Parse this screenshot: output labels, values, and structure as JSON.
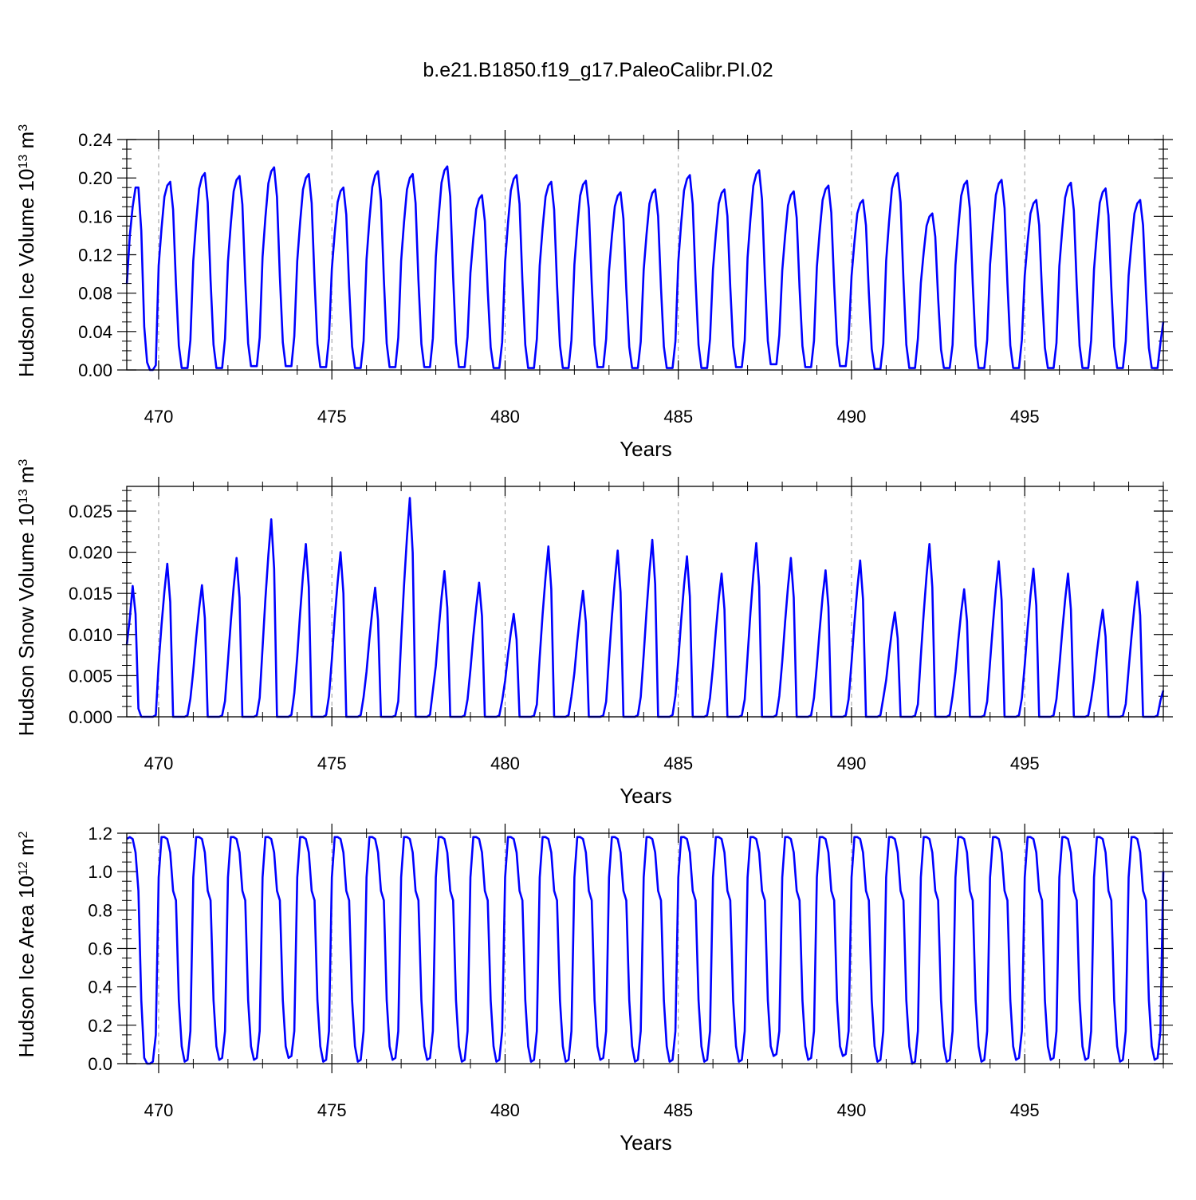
{
  "figure_title": "b.e21.B1850.f19_g17.PaleoCalibr.PI.02",
  "colors": {
    "line": "#0000ff",
    "axis": "#000000",
    "grid": "#999999"
  },
  "chart_data": [
    {
      "type": "line",
      "ylabel": "Hudson Ice Volume 10",
      "ylabel_sup1": "13",
      "ylabel_unit": " m",
      "ylabel_sup2": "3",
      "xlabel": "Years",
      "xlim": [
        469.08,
        499.0
      ],
      "ylim": [
        0,
        0.24
      ],
      "xticks": [
        470,
        475,
        480,
        485,
        490,
        495
      ],
      "xtick_labels": [
        "470",
        "475",
        "480",
        "485",
        "490",
        "495"
      ],
      "yticks": [
        0,
        0.04,
        0.08,
        0.12,
        0.16,
        0.2,
        0.24
      ],
      "ytick_labels": [
        "0.00",
        "0.04",
        "0.08",
        "0.12",
        "0.16",
        "0.20",
        "0.24"
      ],
      "x_start": 469.0833,
      "x_step": 0.083333,
      "grid": "dashed vertical at major x ticks",
      "annual_peaks": [
        0.19,
        0.196,
        0.205,
        0.202,
        0.211,
        0.204,
        0.19,
        0.207,
        0.204,
        0.212,
        0.182,
        0.203,
        0.196,
        0.197,
        0.185,
        0.188,
        0.203,
        0.188,
        0.208,
        0.186,
        0.192,
        0.177,
        0.205,
        0.163,
        0.197,
        0.198,
        0.177,
        0.195,
        0.189,
        0.177
      ],
      "annual_minima": [
        0.0,
        0.002,
        0.002,
        0.004,
        0.004,
        0.003,
        0.002,
        0.003,
        0.003,
        0.003,
        0.002,
        0.002,
        0.002,
        0.003,
        0.002,
        0.002,
        0.002,
        0.003,
        0.006,
        0.003,
        0.004,
        0.001,
        0.002,
        0.002,
        0.002,
        0.002,
        0.002,
        0.002,
        0.002,
        0.002
      ],
      "start_value": 0.09,
      "end_value": 0.05
    },
    {
      "type": "line",
      "ylabel": "Hudson Snow Volume 10",
      "ylabel_sup1": "13",
      "ylabel_unit": " m",
      "ylabel_sup2": "3",
      "xlabel": "Years",
      "xlim": [
        469.08,
        499.0
      ],
      "ylim": [
        0,
        0.028
      ],
      "xticks": [
        470,
        475,
        480,
        485,
        490,
        495
      ],
      "xtick_labels": [
        "470",
        "475",
        "480",
        "485",
        "490",
        "495"
      ],
      "yticks": [
        0,
        0.005,
        0.01,
        0.015,
        0.02,
        0.025
      ],
      "ytick_labels": [
        "0.000",
        "0.005",
        "0.010",
        "0.015",
        "0.020",
        "0.025"
      ],
      "x_start": 469.0833,
      "x_step": 0.083333,
      "grid": "dashed vertical at major x ticks",
      "annual_peaks": [
        0.0159,
        0.0186,
        0.016,
        0.0193,
        0.024,
        0.021,
        0.02,
        0.0157,
        0.0266,
        0.0177,
        0.0163,
        0.0125,
        0.0207,
        0.0153,
        0.0202,
        0.0215,
        0.0195,
        0.0174,
        0.0211,
        0.0193,
        0.0178,
        0.019,
        0.0127,
        0.021,
        0.0155,
        0.0189,
        0.018,
        0.0174,
        0.013,
        0.0164
      ],
      "start_value": 0.0088,
      "end_value": 0.0032
    },
    {
      "type": "line",
      "ylabel": "Hudson Ice Area 10",
      "ylabel_sup1": "12",
      "ylabel_unit": " m",
      "ylabel_sup2": "2",
      "xlabel": "Years",
      "xlim": [
        469.08,
        499.0
      ],
      "ylim": [
        0,
        1.2
      ],
      "xticks": [
        470,
        475,
        480,
        485,
        490,
        495
      ],
      "xtick_labels": [
        "470",
        "475",
        "480",
        "485",
        "490",
        "495"
      ],
      "yticks": [
        0,
        0.2,
        0.4,
        0.6,
        0.8,
        1.0,
        1.2
      ],
      "ytick_labels": [
        "0.0",
        "0.2",
        "0.4",
        "0.6",
        "0.8",
        "1.0",
        "1.2"
      ],
      "x_start": 469.0833,
      "x_step": 0.083333,
      "grid": "dashed vertical at major x ticks",
      "annual_peak": 1.18,
      "annual_minima": [
        0.01,
        0.01,
        0.02,
        0.02,
        0.03,
        0.01,
        0.01,
        0.02,
        0.02,
        0.01,
        0.01,
        0.01,
        0.01,
        0.02,
        0.01,
        0.01,
        0.01,
        0.01,
        0.04,
        0.02,
        0.04,
        0.01,
        0.0,
        0.01,
        0.01,
        0.02,
        0.02,
        0.02,
        0.01,
        0.02
      ],
      "end_value": 1.0
    }
  ]
}
